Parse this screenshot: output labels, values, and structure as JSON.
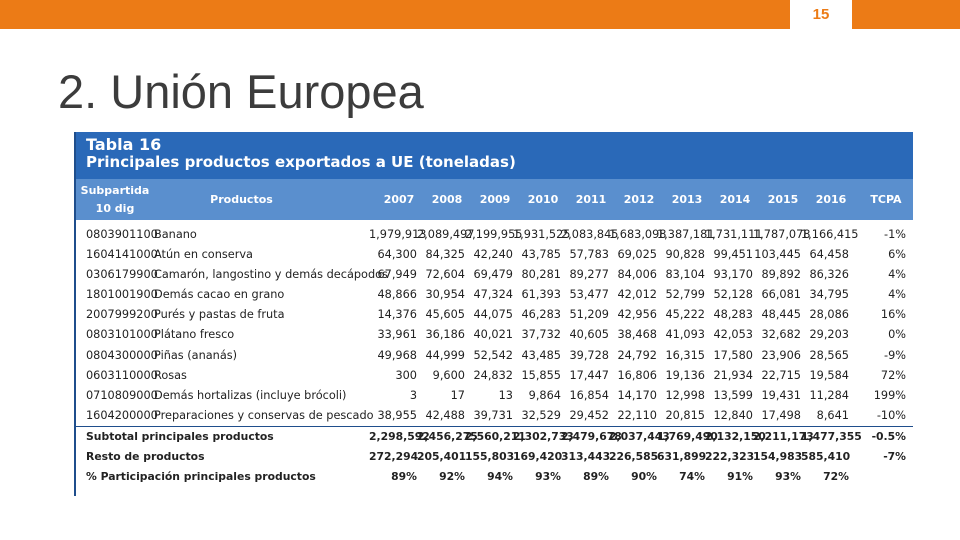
{
  "slide": {
    "page_number": "15",
    "title": "2. Unión Europea"
  },
  "table": {
    "label": "Tabla 16",
    "caption": "Principales productos exportados a UE (toneladas)",
    "col_subpartida_1": "Subpartida",
    "col_subpartida_2": "10 dig",
    "col_productos": "Productos",
    "years": [
      "2007",
      "2008",
      "2009",
      "2010",
      "2011",
      "2012",
      "2013",
      "2014",
      "2015",
      "2016"
    ],
    "col_tcpa": "TCPA",
    "rows": [
      {
        "code": "0803901100",
        "name": "Banano",
        "values": [
          "1,979,913",
          "2,089,497",
          "2,199,955",
          "1,931,525",
          "2,083,845",
          "1,683,098",
          "1,387,181",
          "1,731,111",
          "1,787,078",
          "1,166,415"
        ],
        "tcpa": "-1%"
      },
      {
        "code": "1604141000",
        "name": "Atún en conserva",
        "values": [
          "64,300",
          "84,325",
          "42,240",
          "43,785",
          "57,783",
          "69,025",
          "90,828",
          "99,451",
          "103,445",
          "64,458"
        ],
        "tcpa": "6%"
      },
      {
        "code": "0306179900",
        "name": "Camarón, langostino y demás decápodos",
        "values": [
          "67,949",
          "72,604",
          "69,479",
          "80,281",
          "89,277",
          "84,006",
          "83,104",
          "93,170",
          "89,892",
          "86,326"
        ],
        "tcpa": "4%"
      },
      {
        "code": "1801001900",
        "name": "Demás cacao en grano",
        "values": [
          "48,866",
          "30,954",
          "47,324",
          "61,393",
          "53,477",
          "42,012",
          "52,799",
          "52,128",
          "66,081",
          "34,795"
        ],
        "tcpa": "4%"
      },
      {
        "code": "2007999200",
        "name": "Purés y pastas de fruta",
        "values": [
          "14,376",
          "45,605",
          "44,075",
          "46,283",
          "51,209",
          "42,956",
          "45,222",
          "48,283",
          "48,445",
          "28,086"
        ],
        "tcpa": "16%"
      },
      {
        "code": "0803101000",
        "name": "Plátano fresco",
        "values": [
          "33,961",
          "36,186",
          "40,021",
          "37,732",
          "40,605",
          "38,468",
          "41,093",
          "42,053",
          "32,682",
          "29,203"
        ],
        "tcpa": "0%"
      },
      {
        "code": "0804300000",
        "name": "Piñas (ananás)",
        "values": [
          "49,968",
          "44,999",
          "52,542",
          "43,485",
          "39,728",
          "24,792",
          "16,315",
          "17,580",
          "23,906",
          "28,565"
        ],
        "tcpa": "-9%"
      },
      {
        "code": "0603110000",
        "name": "Rosas",
        "values": [
          "300",
          "9,600",
          "24,832",
          "15,855",
          "17,447",
          "16,806",
          "19,136",
          "21,934",
          "22,715",
          "19,584"
        ],
        "tcpa": "72%"
      },
      {
        "code": "0710809000",
        "name": "Demás hortalizas (incluye brócoli)",
        "values": [
          "3",
          "17",
          "13",
          "9,864",
          "16,854",
          "14,170",
          "12,998",
          "13,599",
          "19,431",
          "11,284"
        ],
        "tcpa": "199%"
      },
      {
        "code": "1604200000",
        "name": "Preparaciones y conservas de pescado",
        "values": [
          "38,955",
          "42,488",
          "39,731",
          "32,529",
          "29,452",
          "22,110",
          "20,815",
          "12,840",
          "17,498",
          "8,641"
        ],
        "tcpa": "-10%"
      }
    ],
    "summary": [
      {
        "name": "Subtotal principales productos",
        "values": [
          "2,298,592",
          "2,456,275",
          "2,560,211",
          "2,302,733",
          "2,479,678",
          "2,037,443",
          "1,769,490",
          "2,132,150",
          "2,211,173",
          "1,477,355"
        ],
        "tcpa": "-0.5%"
      },
      {
        "name": "Resto de productos",
        "values": [
          "272,294",
          "205,401",
          "155,803",
          "169,420",
          "313,443",
          "226,585",
          "631,899",
          "222,323",
          "154,983",
          "585,410"
        ],
        "tcpa": "-7%"
      },
      {
        "name": "% Participación principales productos",
        "values": [
          "89%",
          "92%",
          "94%",
          "93%",
          "89%",
          "90%",
          "74%",
          "91%",
          "93%",
          "72%"
        ],
        "tcpa": ""
      }
    ]
  },
  "colors": {
    "accent": "#ec7b16",
    "header_dark": "#2a69b8",
    "header_light": "#5a8fce"
  }
}
